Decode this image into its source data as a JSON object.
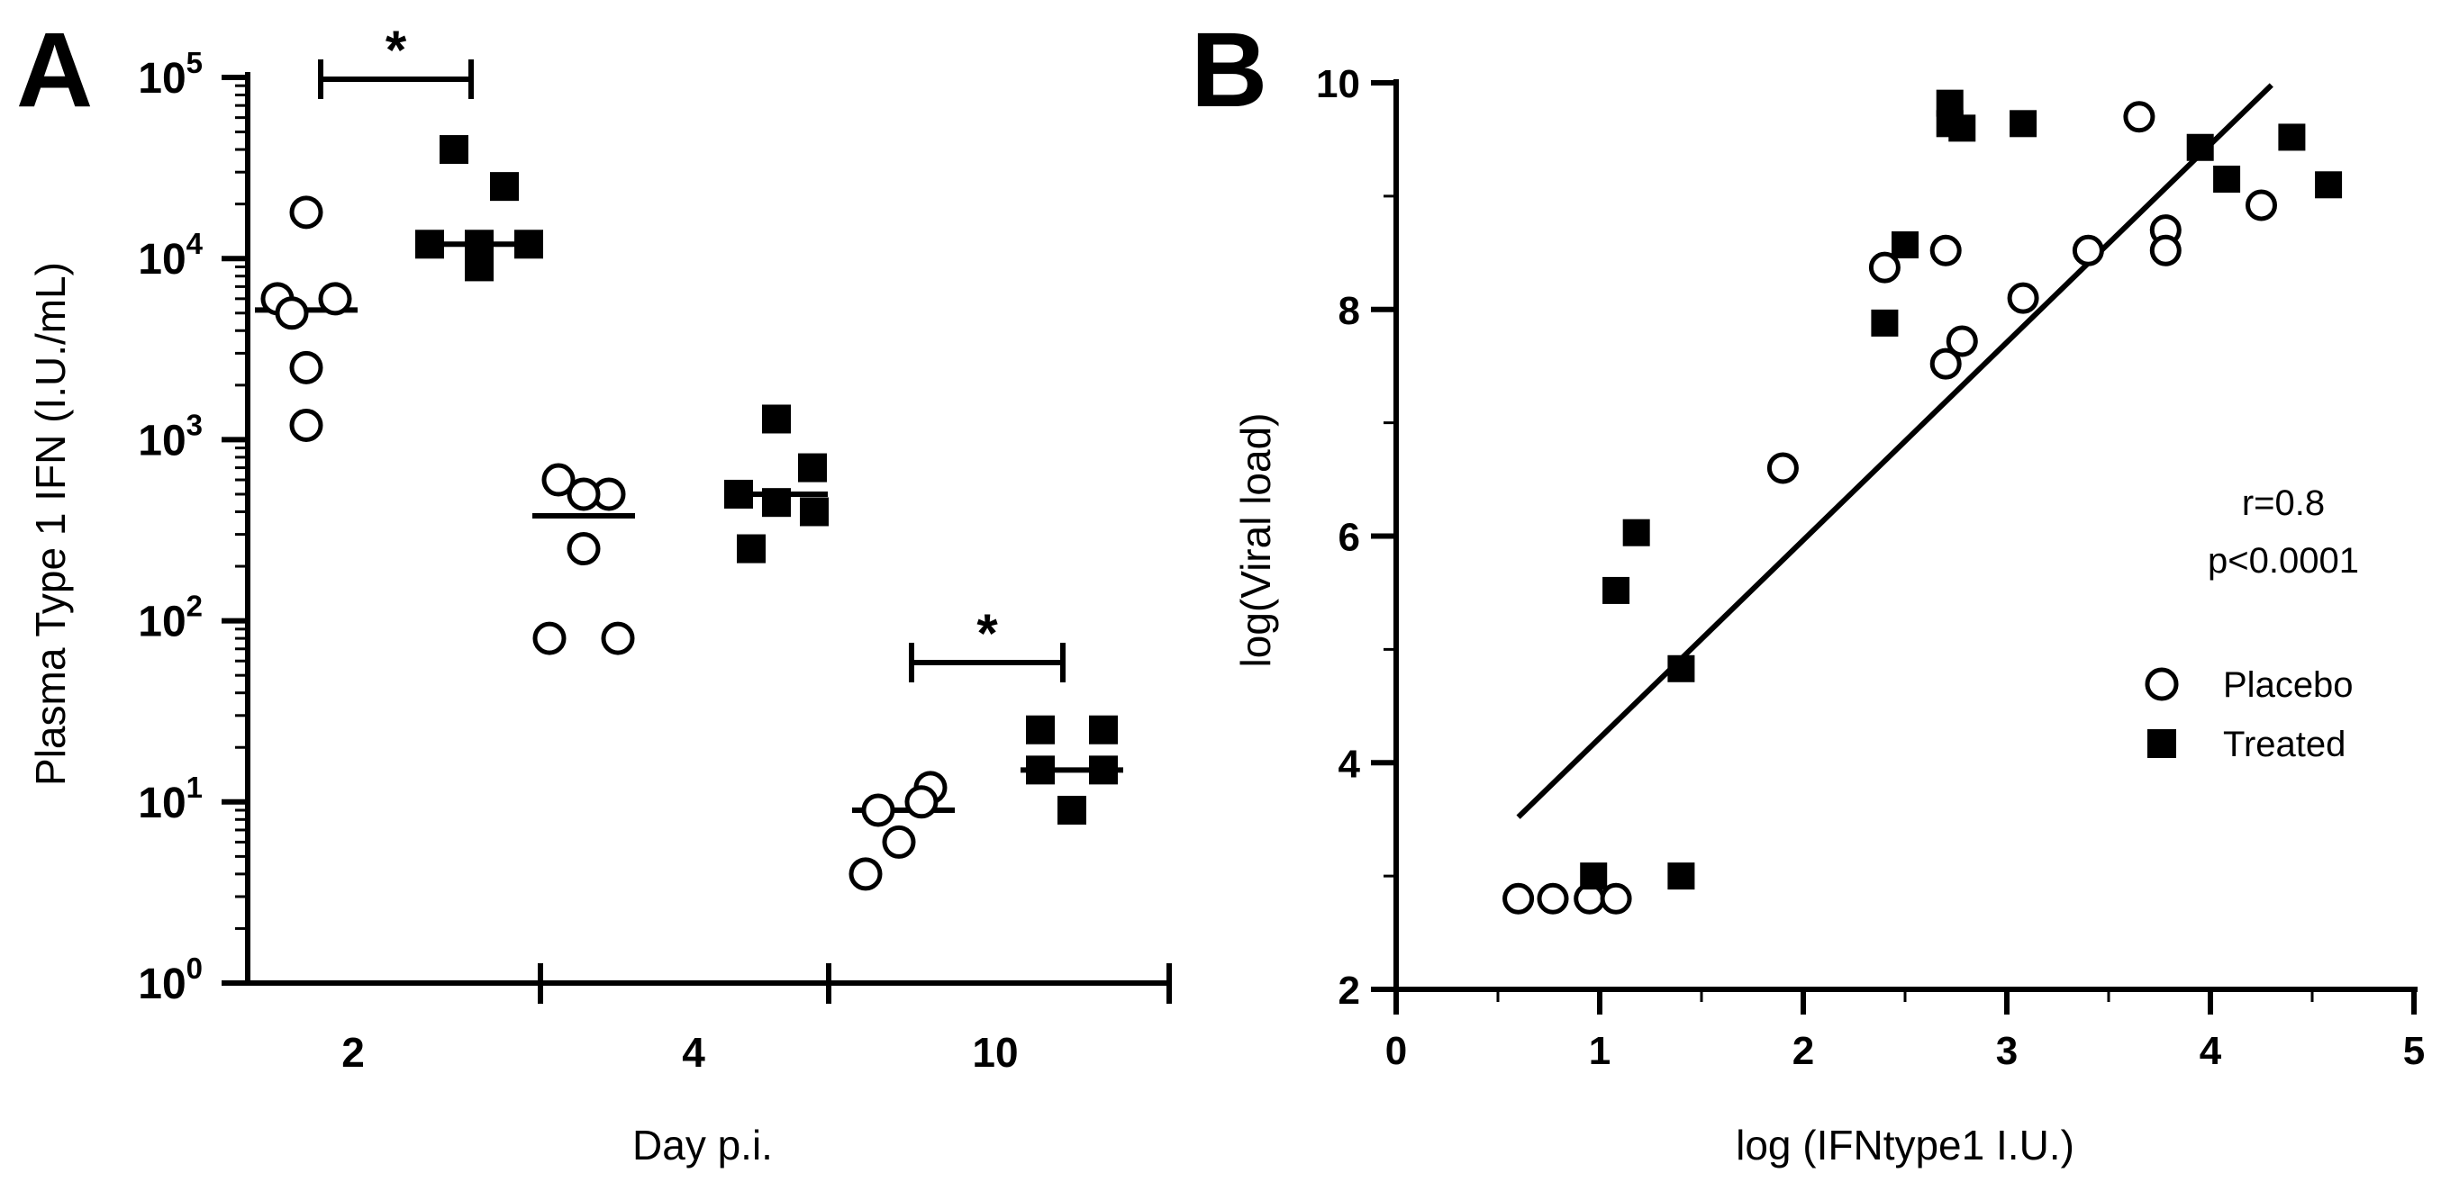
{
  "panel_a_letter": "A",
  "panel_b_letter": "B",
  "chart_data": [
    {
      "id": "A",
      "type": "scatter",
      "title": "",
      "ylabel": "Plasma Type 1 IFN  (I.U./mL)",
      "xlabel": "Day p.i.",
      "yscale": "log10",
      "ylim": [
        1,
        100000
      ],
      "y_tick_base": "10",
      "y_tick_exponents": [
        "0",
        "1",
        "2",
        "3",
        "4",
        "5"
      ],
      "categories": [
        "2",
        "4",
        "10"
      ],
      "series": [
        {
          "name": "Placebo",
          "marker": "open-circle",
          "values": {
            "2": [
              18000,
              6000,
              6000,
              5000,
              2500,
              1200
            ],
            "4": [
              600,
              500,
              500,
              250,
              80,
              80
            ],
            "10": [
              12,
              10,
              9,
              6,
              4
            ]
          },
          "medians": {
            "2": 5200,
            "4": 380,
            "10": 9
          }
        },
        {
          "name": "Treated",
          "marker": "filled-square",
          "values": {
            "2": [
              40000,
              25000,
              12000,
              12000,
              12000,
              9000
            ],
            "4": [
              1300,
              700,
              500,
              450,
              400,
              250
            ],
            "10": [
              25,
              25,
              15,
              15,
              9
            ]
          },
          "medians": {
            "2": 12000,
            "4": 500,
            "10": 15
          }
        }
      ],
      "significance": [
        {
          "category": "2",
          "label": "*"
        },
        {
          "category": "10",
          "label": "*"
        }
      ]
    },
    {
      "id": "B",
      "type": "scatter",
      "title": "",
      "xlabel": "log (IFNtype1 I.U.)",
      "ylabel": "log(Viral load)",
      "xlim": [
        0,
        5
      ],
      "ylim": [
        2,
        10
      ],
      "x_ticks": [
        "0",
        "1",
        "2",
        "3",
        "4",
        "5"
      ],
      "y_ticks": [
        "2",
        "4",
        "6",
        "8",
        "10"
      ],
      "series": [
        {
          "name": "Placebo",
          "marker": "open-circle",
          "points": [
            [
              0.6,
              2.8
            ],
            [
              0.77,
              2.8
            ],
            [
              0.95,
              2.8
            ],
            [
              1.08,
              2.8
            ],
            [
              1.9,
              6.6
            ],
            [
              2.4,
              8.37
            ],
            [
              2.7,
              8.52
            ],
            [
              2.7,
              7.52
            ],
            [
              2.78,
              7.72
            ],
            [
              3.08,
              8.1
            ],
            [
              3.4,
              8.52
            ],
            [
              3.65,
              9.7
            ],
            [
              3.78,
              8.7
            ],
            [
              3.78,
              8.52
            ],
            [
              4.25,
              8.92
            ]
          ]
        },
        {
          "name": "Treated",
          "marker": "filled-square",
          "points": [
            [
              0.97,
              3.0
            ],
            [
              1.08,
              5.52
            ],
            [
              1.18,
              6.03
            ],
            [
              1.4,
              4.83
            ],
            [
              1.4,
              3.0
            ],
            [
              2.4,
              7.88
            ],
            [
              2.5,
              8.57
            ],
            [
              2.72,
              9.82
            ],
            [
              2.72,
              9.64
            ],
            [
              2.78,
              9.6
            ],
            [
              3.08,
              9.64
            ],
            [
              3.95,
              9.43
            ],
            [
              4.08,
              9.15
            ],
            [
              4.4,
              9.52
            ],
            [
              4.58,
              9.1
            ]
          ]
        }
      ],
      "fit_line": {
        "x": [
          0.6,
          4.3
        ],
        "y": [
          3.52,
          9.98
        ]
      },
      "annotation": [
        "r=0.8",
        "p<0.0001"
      ],
      "legend": [
        {
          "label": "Placebo",
          "marker": "open-circle"
        },
        {
          "label": "Treated",
          "marker": "filled-square"
        }
      ],
      "legend_position": "right"
    }
  ]
}
